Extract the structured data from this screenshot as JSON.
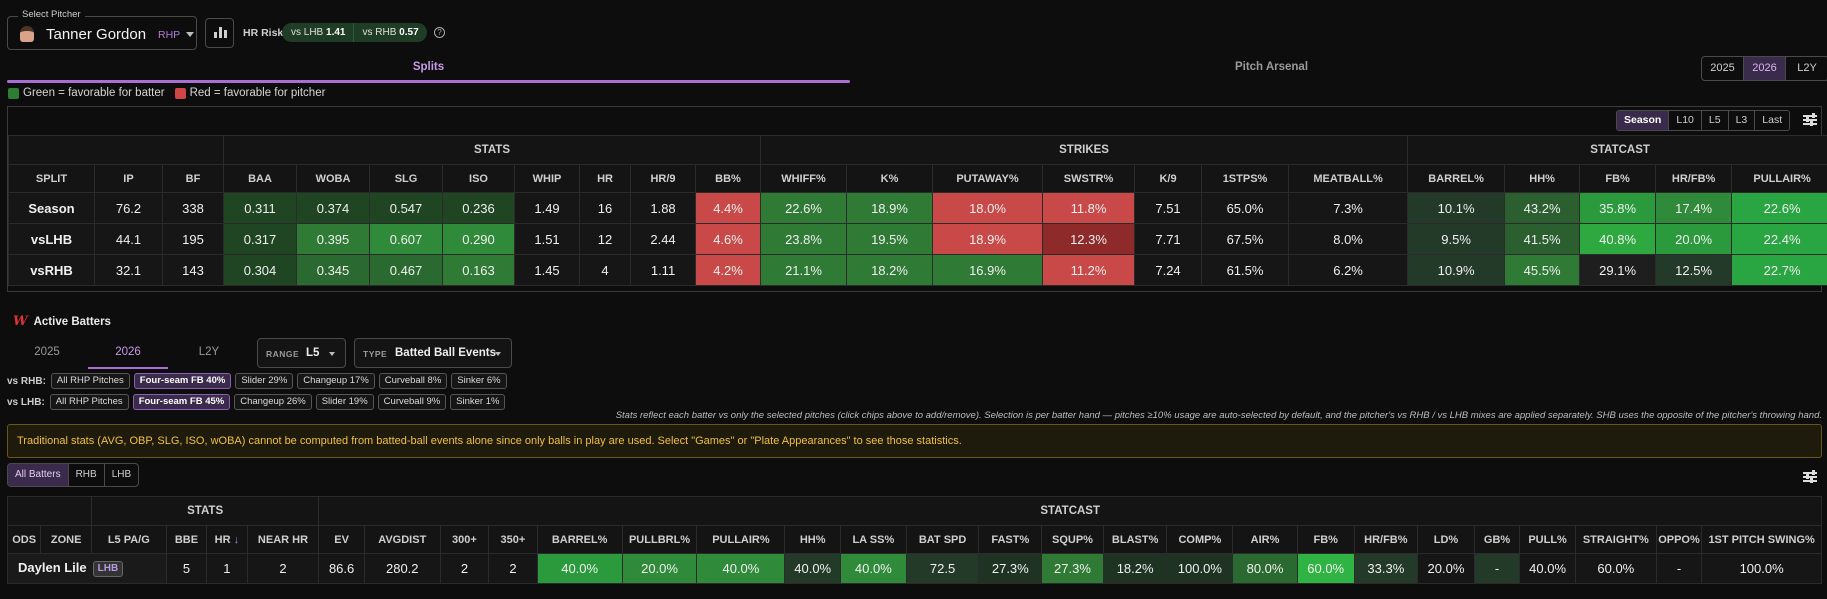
{
  "header": {
    "select_label": "Select Pitcher",
    "pitcher_name": "Tanner Gordon",
    "pitcher_hand": "RHP",
    "hr_risk_label": "HR Risk",
    "vs_lhb_label": "vs LHB",
    "vs_lhb_value": "1.41",
    "vs_rhb_label": "vs RHB",
    "vs_rhb_value": "0.57",
    "help": "?"
  },
  "tabs": {
    "splits": "Splits",
    "arsenal": "Pitch Arsenal"
  },
  "years": [
    "2025",
    "2026",
    "L2Y"
  ],
  "selected_year": "2026",
  "legend": {
    "green": "Green = favorable for batter",
    "red": "Red = favorable for pitcher",
    "green_color": "#2e7d32",
    "red_color": "#d04545"
  },
  "range_buttons": [
    "Season",
    "L10",
    "L5",
    "L3",
    "Last"
  ],
  "splits_table": {
    "groups": [
      "STATS",
      "STRIKES",
      "STATCAST"
    ],
    "columns": [
      "SPLIT",
      "IP",
      "BF",
      "BAA",
      "WOBA",
      "SLG",
      "ISO",
      "WHIP",
      "HR",
      "HR/9",
      "BB%",
      "WHIFF%",
      "K%",
      "PUTAWAY%",
      "SWSTR%",
      "K/9",
      "1STPS%",
      "MEATBALL%",
      "BARREL%",
      "HH%",
      "FB%",
      "HR/FB%",
      "PULLAIR%"
    ],
    "rows": [
      [
        "Season",
        "76.2",
        "338",
        "0.311",
        "0.374",
        "0.547",
        "0.236",
        "1.49",
        "16",
        "1.88",
        "4.4%",
        "22.6%",
        "18.9%",
        "18.0%",
        "11.8%",
        "7.51",
        "65.0%",
        "7.3%",
        "10.1%",
        "43.2%",
        "35.8%",
        "17.4%",
        "22.6%"
      ],
      [
        "vsLHB",
        "44.1",
        "195",
        "0.317",
        "0.395",
        "0.607",
        "0.290",
        "1.51",
        "12",
        "2.44",
        "4.6%",
        "23.8%",
        "19.5%",
        "18.9%",
        "12.3%",
        "7.71",
        "67.5%",
        "8.0%",
        "9.5%",
        "41.5%",
        "40.8%",
        "20.0%",
        "22.4%"
      ],
      [
        "vsRHB",
        "32.1",
        "143",
        "0.304",
        "0.345",
        "0.467",
        "0.163",
        "1.45",
        "4",
        "1.11",
        "4.2%",
        "21.1%",
        "18.2%",
        "16.9%",
        "11.2%",
        "7.24",
        "61.5%",
        "6.2%",
        "10.9%",
        "45.5%",
        "29.1%",
        "12.5%",
        "22.7%"
      ]
    ],
    "colors": [
      [
        "",
        "",
        "",
        "#1f4523",
        "#1f4523",
        "#1f4523",
        "#1f4523",
        "",
        "",
        "",
        "#c94848",
        "#2f7a35",
        "#2f7a35",
        "#c94848",
        "#c94848",
        "",
        "",
        "",
        "#243a28",
        "#2b5f30",
        "#2a9a3c",
        "#2f8a39",
        "#29a641"
      ],
      [
        "",
        "",
        "",
        "#1f4523",
        "#2f7a35",
        "#2f8a39",
        "#2f8a39",
        "",
        "",
        "",
        "#c94848",
        "#2f7a35",
        "#2f7a35",
        "#c94848",
        "#8e2a2a",
        "",
        "",
        "",
        "#243a28",
        "#2b5f30",
        "#2da940",
        "#2a9a3c",
        "#29a641"
      ],
      [
        "",
        "",
        "",
        "#1f4523",
        "#2a6a30",
        "#2a6a30",
        "#2f7a35",
        "",
        "",
        "",
        "#c94848",
        "#2f7a35",
        "#2f7a35",
        "#2f7a35",
        "#c94848",
        "",
        "",
        "",
        "#243a28",
        "#2f7a35",
        "#1e1e1e",
        "#243a28",
        "#29a641"
      ]
    ]
  },
  "active_batters": {
    "title": "Active Batters",
    "years": [
      "2025",
      "2026",
      "L2Y"
    ],
    "range_key": "RANGE",
    "range_value": "L5",
    "type_key": "TYPE",
    "type_value": "Batted Ball Events",
    "vs_rhb_label": "vs RHB:",
    "vs_rhb_chips": [
      "All RHP Pitches",
      "Four-seam FB 40%",
      "Slider 29%",
      "Changeup 17%",
      "Curveball 8%",
      "Sinker 6%"
    ],
    "vs_lhb_label": "vs LHB:",
    "vs_lhb_chips": [
      "All RHP Pitches",
      "Four-seam FB 45%",
      "Changeup 26%",
      "Slider 19%",
      "Curveball 9%",
      "Sinker 1%"
    ],
    "note": "Stats reflect each batter vs only the selected pitches (click chips above to add/remove). Selection is per batter hand — pitches ≥10% usage are auto-selected by default, and the pitcher's vs RHB / vs LHB mixes are applied separately. SHB uses the opposite of the pitcher's throwing hand.",
    "warning": "Traditional stats (AVG, OBP, SLG, ISO, wOBA) cannot be computed from batted-ball events alone since only balls in play are used. Select \"Games\" or \"Plate Appearances\" to see those statistics.",
    "filters": [
      "All Batters",
      "RHB",
      "LHB"
    ]
  },
  "batters_table": {
    "groups": [
      "STATS",
      "STATCAST"
    ],
    "columns": [
      "ODS",
      "ZONE",
      "L5 PA/G",
      "BBE",
      "HR",
      "NEAR HR",
      "EV",
      "AVGDIST",
      "300+",
      "350+",
      "BARREL%",
      "PULLBRL%",
      "PULLAIR%",
      "HH%",
      "LA SS%",
      "BAT SPD",
      "FAST%",
      "SQUP%",
      "BLAST%",
      "COMP%",
      "AIR%",
      "FB%",
      "HR/FB%",
      "LD%",
      "GB%",
      "PULL%",
      "STRAIGHT%",
      "OPPO%",
      "1ST PITCH SWING%"
    ],
    "sort_arrow": "↓",
    "row": {
      "name": "Daylen Lile",
      "hand": "LHB",
      "values": [
        "5",
        "1",
        "2",
        "86.6",
        "280.2",
        "2",
        "2",
        "40.0%",
        "20.0%",
        "40.0%",
        "40.0%",
        "40.0%",
        "72.5",
        "27.3%",
        "27.3%",
        "18.2%",
        "100.0%",
        "80.0%",
        "60.0%",
        "33.3%",
        "20.0%",
        "-",
        "40.0%",
        "60.0%",
        "-",
        "100.0%"
      ]
    },
    "colors": [
      "",
      "",
      "",
      "",
      "",
      "",
      "",
      "#2a9a3c",
      "#2f8a39",
      "#2f8a39",
      "#243a28",
      "#2f8a39",
      "#243a28",
      "#1f3323",
      "#2f7a35",
      "#1f3323",
      "#1f3323",
      "#2a6a30",
      "#2fb443",
      "#243a28",
      "",
      "#243a28",
      "",
      "",
      "",
      ""
    ]
  }
}
